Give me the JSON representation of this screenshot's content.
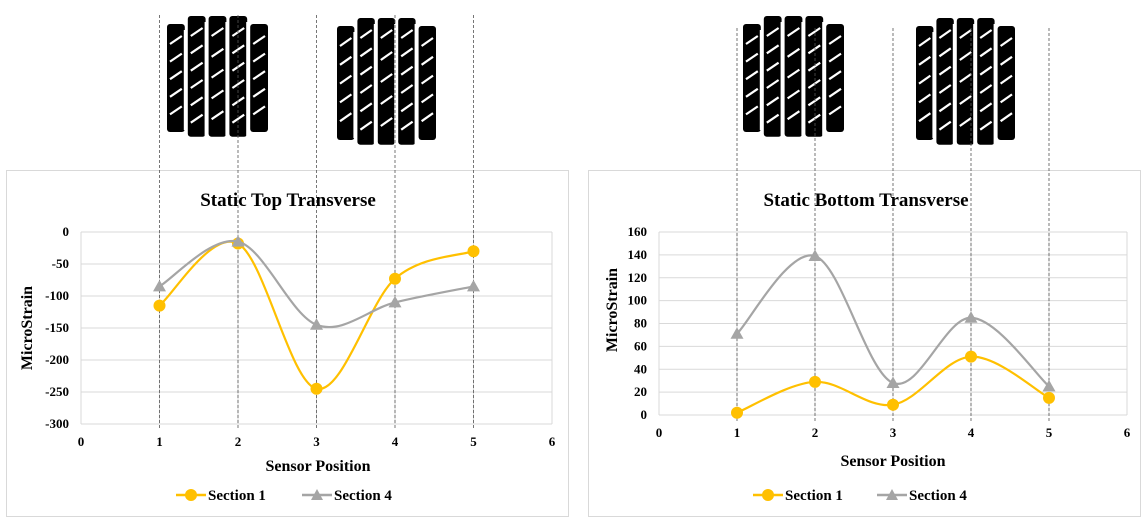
{
  "charts": [
    {
      "chart_data": {
        "type": "line",
        "title": "Static Top Transverse",
        "xlabel": "Sensor Position",
        "ylabel": "MicroStrain",
        "x": [
          1,
          2,
          3,
          4,
          5
        ],
        "xlim": [
          0,
          6
        ],
        "xticks": [
          "0",
          "1",
          "2",
          "3",
          "4",
          "5",
          "6"
        ],
        "ylim": [
          -300,
          0
        ],
        "yticks": [
          "0",
          "-50",
          "-100",
          "-150",
          "-200",
          "-250",
          "-300"
        ],
        "grid": true,
        "legend_position": "bottom",
        "series": [
          {
            "name": "Section 1",
            "values": [
              -115,
              -18,
              -245,
              -73,
              -30
            ],
            "color": "#FFC000",
            "marker": "circle"
          },
          {
            "name": "Section 4",
            "values": [
              -85,
              -15,
              -145,
              -110,
              -85
            ],
            "color": "#A5A5A5",
            "marker": "triangle"
          }
        ]
      }
    },
    {
      "chart_data": {
        "type": "line",
        "title": "Static Bottom Transverse",
        "xlabel": "Sensor Position",
        "ylabel": "MicroStrain",
        "x": [
          1,
          2,
          3,
          4,
          5
        ],
        "xlim": [
          0,
          6
        ],
        "xticks": [
          "0",
          "1",
          "2",
          "3",
          "4",
          "5",
          "6"
        ],
        "ylim": [
          0,
          160
        ],
        "yticks": [
          "160",
          "140",
          "120",
          "100",
          "80",
          "60",
          "40",
          "20",
          "0"
        ],
        "grid": true,
        "legend_position": "bottom",
        "series": [
          {
            "name": "Section 1",
            "values": [
              2,
              29,
              9,
              51,
              15
            ],
            "color": "#FFC000",
            "marker": "circle"
          },
          {
            "name": "Section 4",
            "values": [
              71,
              139,
              28,
              85,
              25
            ],
            "color": "#A5A5A5",
            "marker": "triangle"
          }
        ]
      }
    }
  ],
  "images": [
    {
      "icon": "tire-footprint-icon",
      "color": "#000000"
    },
    {
      "icon": "tire-footprint-icon",
      "color": "#000000"
    },
    {
      "icon": "tire-footprint-icon",
      "color": "#000000"
    },
    {
      "icon": "tire-footprint-icon",
      "color": "#000000"
    }
  ]
}
